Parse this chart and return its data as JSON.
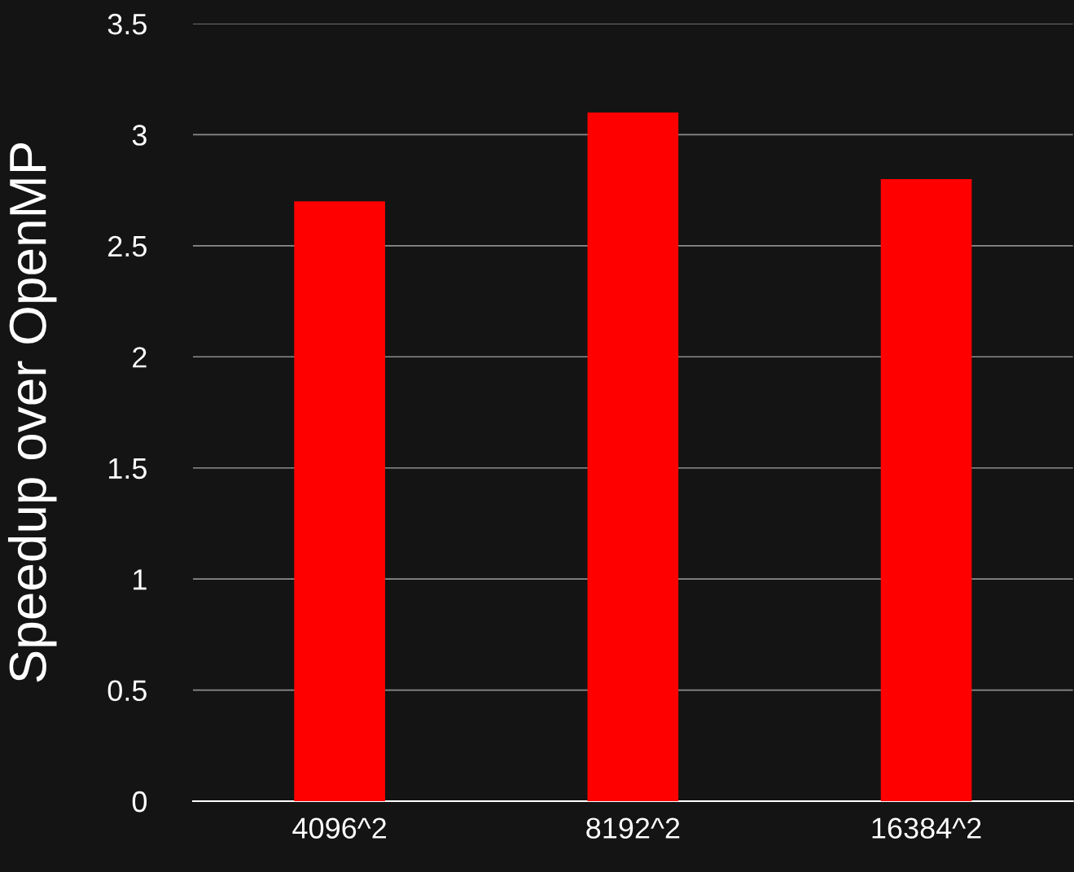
{
  "chart_data": {
    "type": "bar",
    "ylabel": "Speedup over OpenMP",
    "categories": [
      "4096^2",
      "8192^2",
      "16384^2"
    ],
    "values": [
      2.7,
      3.1,
      2.8
    ],
    "color": "#ff0000",
    "ylim": [
      0,
      3.5
    ],
    "yticks": [
      0,
      0.5,
      1,
      1.5,
      2,
      2.5,
      3,
      3.5
    ],
    "grid": "y",
    "legend": false
  }
}
